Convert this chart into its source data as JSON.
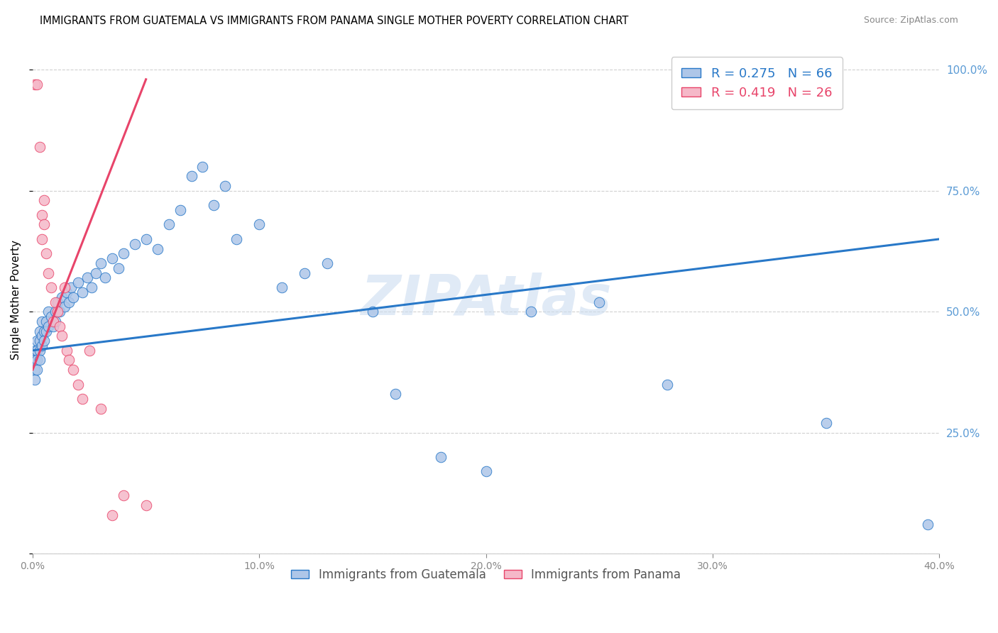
{
  "title": "IMMIGRANTS FROM GUATEMALA VS IMMIGRANTS FROM PANAMA SINGLE MOTHER POVERTY CORRELATION CHART",
  "source": "Source: ZipAtlas.com",
  "ylabel": "Single Mother Poverty",
  "watermark": "ZIPAtlas",
  "guatemala_color": "#aec6e8",
  "panama_color": "#f5b8c8",
  "guatemala_line_color": "#2878c8",
  "panama_line_color": "#e8446a",
  "R_guatemala": 0.275,
  "N_guatemala": 66,
  "R_panama": 0.419,
  "N_panama": 26,
  "xlim": [
    0,
    0.4
  ],
  "ylim": [
    0,
    1.05
  ],
  "guatemala_points": [
    [
      0.001,
      0.42
    ],
    [
      0.001,
      0.4
    ],
    [
      0.001,
      0.38
    ],
    [
      0.001,
      0.36
    ],
    [
      0.002,
      0.44
    ],
    [
      0.002,
      0.42
    ],
    [
      0.002,
      0.4
    ],
    [
      0.002,
      0.38
    ],
    [
      0.003,
      0.46
    ],
    [
      0.003,
      0.44
    ],
    [
      0.003,
      0.42
    ],
    [
      0.003,
      0.4
    ],
    [
      0.004,
      0.48
    ],
    [
      0.004,
      0.45
    ],
    [
      0.004,
      0.43
    ],
    [
      0.005,
      0.46
    ],
    [
      0.005,
      0.44
    ],
    [
      0.006,
      0.48
    ],
    [
      0.006,
      0.46
    ],
    [
      0.007,
      0.5
    ],
    [
      0.007,
      0.47
    ],
    [
      0.008,
      0.49
    ],
    [
      0.009,
      0.47
    ],
    [
      0.01,
      0.5
    ],
    [
      0.01,
      0.48
    ],
    [
      0.011,
      0.52
    ],
    [
      0.012,
      0.5
    ],
    [
      0.013,
      0.53
    ],
    [
      0.014,
      0.51
    ],
    [
      0.015,
      0.54
    ],
    [
      0.016,
      0.52
    ],
    [
      0.017,
      0.55
    ],
    [
      0.018,
      0.53
    ],
    [
      0.02,
      0.56
    ],
    [
      0.022,
      0.54
    ],
    [
      0.024,
      0.57
    ],
    [
      0.026,
      0.55
    ],
    [
      0.028,
      0.58
    ],
    [
      0.03,
      0.6
    ],
    [
      0.032,
      0.57
    ],
    [
      0.035,
      0.61
    ],
    [
      0.038,
      0.59
    ],
    [
      0.04,
      0.62
    ],
    [
      0.045,
      0.64
    ],
    [
      0.05,
      0.65
    ],
    [
      0.055,
      0.63
    ],
    [
      0.06,
      0.68
    ],
    [
      0.065,
      0.71
    ],
    [
      0.07,
      0.78
    ],
    [
      0.075,
      0.8
    ],
    [
      0.08,
      0.72
    ],
    [
      0.085,
      0.76
    ],
    [
      0.09,
      0.65
    ],
    [
      0.1,
      0.68
    ],
    [
      0.11,
      0.55
    ],
    [
      0.12,
      0.58
    ],
    [
      0.13,
      0.6
    ],
    [
      0.15,
      0.5
    ],
    [
      0.16,
      0.33
    ],
    [
      0.18,
      0.2
    ],
    [
      0.2,
      0.17
    ],
    [
      0.22,
      0.5
    ],
    [
      0.25,
      0.52
    ],
    [
      0.28,
      0.35
    ],
    [
      0.35,
      0.27
    ],
    [
      0.395,
      0.06
    ]
  ],
  "panama_points": [
    [
      0.001,
      0.97
    ],
    [
      0.002,
      0.97
    ],
    [
      0.003,
      0.84
    ],
    [
      0.004,
      0.7
    ],
    [
      0.004,
      0.65
    ],
    [
      0.005,
      0.73
    ],
    [
      0.005,
      0.68
    ],
    [
      0.006,
      0.62
    ],
    [
      0.007,
      0.58
    ],
    [
      0.008,
      0.55
    ],
    [
      0.009,
      0.48
    ],
    [
      0.01,
      0.52
    ],
    [
      0.011,
      0.5
    ],
    [
      0.012,
      0.47
    ],
    [
      0.013,
      0.45
    ],
    [
      0.014,
      0.55
    ],
    [
      0.015,
      0.42
    ],
    [
      0.016,
      0.4
    ],
    [
      0.018,
      0.38
    ],
    [
      0.02,
      0.35
    ],
    [
      0.022,
      0.32
    ],
    [
      0.025,
      0.42
    ],
    [
      0.03,
      0.3
    ],
    [
      0.035,
      0.08
    ],
    [
      0.04,
      0.12
    ],
    [
      0.05,
      0.1
    ]
  ],
  "guat_line_x": [
    0.0,
    0.4
  ],
  "guat_line_y": [
    0.42,
    0.65
  ],
  "pan_line_x": [
    0.0,
    0.05
  ],
  "pan_line_y": [
    0.38,
    0.98
  ]
}
